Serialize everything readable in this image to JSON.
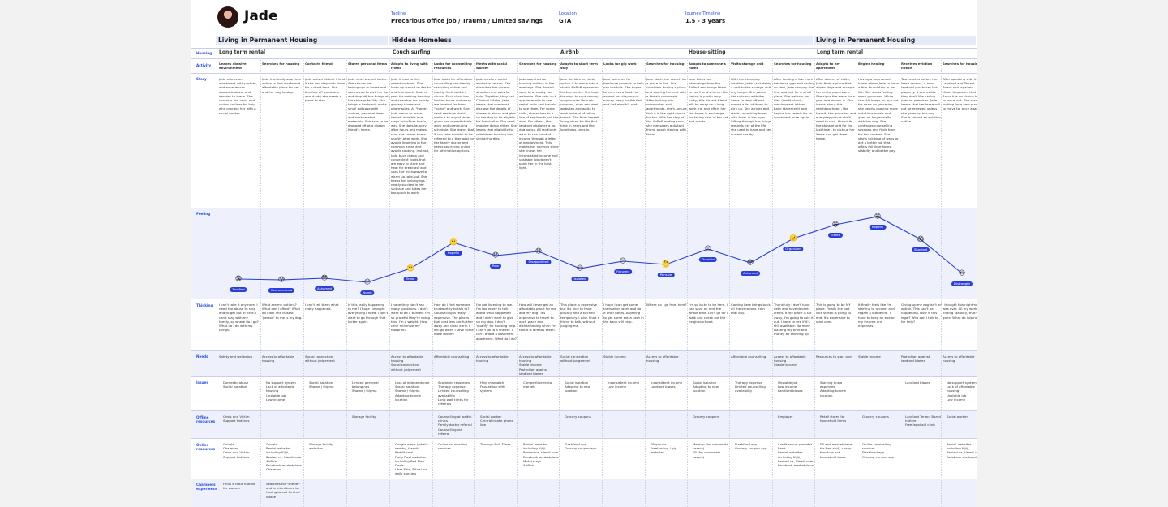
{
  "persona": {
    "name": "Jade",
    "tagline_label": "Tagline",
    "tagline": "Precarious office job / Trauma / Limited savings",
    "location_label": "Location",
    "location": "GTA",
    "timeline_label": "Journey Timeline",
    "timeline": "1.5 - 3 years"
  },
  "phases": [
    "Living in Permanent Housing",
    "Hidden Homeless",
    "Living in Permanent Housing"
  ],
  "row_labels": {
    "housing": "Housing",
    "activity": "Activity",
    "story": "Story",
    "feeling": "Feeling",
    "thinking": "Thinking",
    "needs": "Needs",
    "issues": "Issues",
    "offline": "Offline resources",
    "online": "Online resources",
    "champions": "Chamners experience"
  },
  "housing_stages": [
    "Long term rental",
    "Couch surfing",
    "AirBnb",
    "House-sitting",
    "Long term rental"
  ],
  "activities": [
    "Leaves abusive environment",
    "Searches for housing",
    "Contacts friend",
    "Stores personal items",
    "Adapts to living with friend",
    "Looks for counselling resources",
    "Meets with social worker",
    "Searches for housing",
    "Adapts to short term stay",
    "Looks for gig work",
    "Searches for housing",
    "Adapts to someone's home",
    "Visits storage unit",
    "Searches for housing",
    "Adapts to her apartment",
    "Begins healing",
    "Receives eviction notice",
    "Searches for housing"
  ],
  "stories": [
    "Jade shares an apartment with partner, and experiences domestic abuse and decides to leave. She contacts the crisis and victim hotlines for help who connect her with a social worker.",
    "Jade frantically searches online to find a safe and affordable place for her and her dog to stay.",
    "Jade asks a distant friend if she can stay with them for a short time. She brushes off questions about why she needs a place to stay.",
    "Jade rents a small locker. She shoves her belongings in boxes and uses a cab to pick her up and drop off her things at the storage facility. She brings a backpack and a small suitcase with clothes, personal items and work related materials. She asks to be dropped off at a distant friend's home.",
    "Jade is new to this neighbourhood. She looks up transit routes to and from work, finds a park for walking her dog and searches for nearby grocery stores and pharmacies. At \"home\", Jade wants to make herself invisible and stays out of her host's way. She does laundry after hours and makes sure she comes home shortly after work. She avoids lingering in the common areas and avoids cooking. Instead, Jade buys cheap and convenient foods that are easy to store and heat for breakfast and uses the microwave to warm up take-out. She keeps her belongings neatly stacked in her suitcase and takes her backpack to work.",
    "Jade looks for affordable counselling services by searching online and mostly finds walk-in clinics. Each clinic has limited hours and many are located far from \"home\" and work. She can't see how she'd make it to any of them given her unpredictable work and commuting schedule. She learns that it can take months to be referred to a therapist by her family doctor and keeps searching online for alternative options.",
    "Jade meets a social worker in person. She describes her current situation and asks for help. Together, they call Criminal Intake. Jade learns that she must disclose the details of domestic abuse and give up her dog to be eligible for the shelter. She can't imagine doing either. She learns that eligibility for subsidized housing has similar hurdles.",
    "Jade searches for housing options in the evenings. She doesn't want to overstay her welcome. She sets up 6 appointments to see rental units and travels to see them. For some units, she arrives to a line of applicants out the door. For others, the landlord discloses a no-dog policy. All landlords want to see proof of income through a letter of employment. This makes her nervous since she knows her inconsistent income and unstable job doesn't paint her in the best light.",
    "Jade decides her best option is to move into a studio AirBnB apartment for two weeks. She looks for ways to save money on groceries through coupons, apps and deal websites and walks to work instead of taking transit. She finds herself living alone for the first time in years and the loneliness sinks in.",
    "Jade searches for freelance projects to help pay the bills. She hopes to earn extra funds to extend her stay or put money away for the first and last month's rent.",
    "Jade starts her search for a place to live. She considers finding a place and sharing the rent with a female roommate. After looking into roommates and apartments, she's unsure that it is the right choice for her. With her stay at the AirBnB ending soon, she messages a distant friend about staying with them.",
    "Jade takes her belongings from the AirBnB and brings them to her friend's home. Her timing is particularly lucky; this distant friend will be away on a long work trip and offers her the home in exchange for taking care of her cat and plants.",
    "With the changing weather, Jade can't delay a visit to the storage unit any longer. She packs her suitcase with the items to drop off and makes a list of items to pick up. She arrives and starts unpacking boxes with tears in her eyes. Sifting through her things reminds her of the life she used to have and her current reality.",
    "After landing a few more freelance gigs and saving on rent, Jade can pay the first and last for a small place. She gathers her files (credit check, employment letters, bank statement) and begins her search for an apartment once again.",
    "After dozens of visits, Jade finds a place that allows dogs and accepts her rental paperwork. She signs the lease for a year and moves in. She learns about this neighbourhood - the transit, the groceries and everyday places she'll need to visit. She visits the storage unit for the last time - to pick up her items and get them home.",
    "Having a permanent home allows Jade to have a firm foundation in her life. She starts feeling more grounded. While she still keeps an eye out for deals on groceries, she begins cooking more nutritious meals and goes on longer walks with her dog. She continues counselling sessions and finds time for her hobbies. She starts thinking of ways to get a better job that offers full time hours, stability and better pay.",
    "Two months before the lease renews, a new landlord purchases the property. It seems like they don't like having pets on premises. Jade learns that her lease will not be renewed unless she gives up her dog. She is served an eviction notice.",
    "After speaking with the Landlord and Tenant Board and legal aid clinic, it appears that Anice has no choice but to move out. She starts looking for a new place to move to, once again."
  ],
  "feelings": [
    "Terrified",
    "Overwhelmed",
    "Ashamed",
    "Numb",
    "Tense",
    "Hopeful",
    "Raw",
    "Disappointed",
    "Isolated",
    "Focused",
    "Pensive",
    "Thankful",
    "Ashamed",
    "Organized",
    "Elated",
    "Hopeful",
    "Shocked",
    "Distraught"
  ],
  "thinking": [
    "I can't take it anymore, I need the abuse to stop and to get out of here. I can't stay with my family, so where do I go? What do I do with my things?",
    "What are my options? What can I afford? What do I do? The closest 'person' to me is my dog.",
    "I can't tell them what really happened.",
    "Is this really happening to me? I hope I brought everything I need. I don't want to go through that locker again.",
    "I hope they don't ask many questions. I don't want to be a burden. I'm so grateful they're doing this. I'm a weight. How can I minimize my footprint?",
    "How do I find someone trustworthy to talk to? Counselling is really expensive. The places that cost less are further away and close early. I will go when I save some more money.",
    "I'm not listening to me. I'm too ready to talk about what happened and I don't want to give up my dog. I don't 'qualify' for housing help. I can't go to a shelter. I can't afford a basement apartment. What do I do?",
    "How will I ever get an affordable place for me and my dog? It's expensive to travel to each place and disheartening when I'm told it is already taken.",
    "This place is expensive but it's nice to have privacy and a kitchen temporary. I wish I had a friend to talk, without judging me.",
    "I hope I can get some translation work and do it after hours. Anything to get some extra cash in the bank will help.",
    "Where do I go from here?",
    "I'm so lucky to be here. I can save on rent the whole time. Let's go for a walk and check out the neighbourhood.",
    "Coming here brings back all the emotions from that day.",
    "Thankfully I don't have debt and have decent credit. If the place is far away, I'm going to rule it out. I have to see if it's still available. No more wasting my time and money by showing up.",
    "This is going to be MY place. Finally the bad luck streak is going to end. It's expensive to start over.",
    "It finally feels like I'm starting to recover and regain a stable life. I have to keep an eye on my income and expenses.",
    "Giving up my dog isn't an option. This can't be happening. How is this legal? Who can I talk to for help?",
    "I thought this nightmare was over. All my work in finding stability, that's all gone. What do I do now?"
  ],
  "needs": [
    [
      "Safety and wellbeing"
    ],
    [
      "Access to affordable housing"
    ],
    [
      "Social connection without judgement"
    ],
    [],
    [
      "Access to affordable housing",
      "Social connection without judgement"
    ],
    [
      "Affordable counselling"
    ],
    [
      "Access to affordable housing"
    ],
    [
      "Access to affordable housing",
      "Stable income",
      "Protection against landlord biases"
    ],
    [
      "Social connection without judgement"
    ],
    [
      "Stable income"
    ],
    [
      "Access to affordable housing"
    ],
    [],
    [
      "Affordable counselling"
    ],
    [
      "Access to affordable housing",
      "Stable income"
    ],
    [
      "Resources to start over"
    ],
    [
      "Stable income"
    ],
    [
      "Protection against landlord biases"
    ],
    [
      "Access to affordable housing"
    ]
  ],
  "issues": [
    [
      "Domestic abuse",
      "Social isolation"
    ],
    [
      "No support system",
      "Lack of affordable housing",
      "Unstable job",
      "Low income"
    ],
    [
      "Social isolation",
      "Shame / stigma"
    ],
    [
      "Limited personal belongings",
      "Shame / stigma"
    ],
    [
      "Loss of independence",
      "Social isolation",
      "Shame / stigma",
      "Adapting to new location"
    ],
    [
      "Scattered resources",
      "Therapy expense",
      "Limited counselling availability",
      "Long wait times for referrals"
    ],
    [
      "Help mismatch",
      "Frustration with system"
    ],
    [
      "Competitive rental market"
    ],
    [
      "Social isolation",
      "Adapting to new location"
    ],
    [
      "Inconsistent income",
      "Low income"
    ],
    [
      "Inconsistent income",
      "Landlord biases"
    ],
    [
      "Social isolation",
      "Adapting to new location"
    ],
    [
      "Therapy expense",
      "Limited counselling availability"
    ],
    [
      "Unstable job",
      "Low income",
      "Landlord biases"
    ],
    [
      "Starting anew expenses",
      "Adapting to new location"
    ],
    [],
    [
      "Landlord biases"
    ],
    [
      "No support system",
      "Lack of affordable housing",
      "Unstable job",
      "Low income"
    ]
  ],
  "offline": [
    [
      "Crisis and Victim Support Hotlines"
    ],
    [],
    [],
    [
      "Storage facility"
    ],
    [],
    [
      "Counselling at walkin clinics",
      "Family doctor referral",
      "Counselling via referral"
    ],
    [
      "Social worker",
      "Central intake phone line"
    ],
    [],
    [
      "Grocery coupons"
    ],
    [],
    [],
    [
      "Grocery coupons"
    ],
    [],
    [
      "Employer"
    ],
    [
      "Retail stores for household items"
    ],
    [
      "Grocery coupons"
    ],
    [
      "Landlord Tenant Board hotline",
      "Free legal aid clinic"
    ],
    [
      "Social worker"
    ]
  ],
  "online": [
    [
      "Google",
      "Chalmers",
      "Crisis and Victim Support Hotlines"
    ],
    [
      "Google",
      "Rental websites including Kijiji, Rented.ca, Viewit.com",
      "AirBnb",
      "Facebook marketplace",
      "Chalmers"
    ],
    [
      "Storage facility websites"
    ],
    [],
    [
      "Google maps (what's nearby, transit)",
      "Reddit.com",
      "Daily Deal websites including Red Flag Deals",
      "Uber Eats, Ritual for daily specials"
    ],
    [
      "Online counselling services"
    ],
    [
      "Through Ruff Times"
    ],
    [
      "Rental websites including Kijiji, Rented.ca, Viewit.com",
      "Facebook marketplace",
      "Motel stays",
      "AirBnb"
    ],
    [
      "Flashfood app",
      "Grocery coupon app"
    ],
    [],
    [
      "FB groups",
      "Freelancing / gig websites"
    ],
    [
      "Meetup (for roommate search)",
      "FB (for roommate search)"
    ],
    [
      "Flashfood app",
      "Grocery coupon app"
    ],
    [
      "Credit report provider",
      "Bank",
      "Rental websites including Kijiji, Rented.ca, Viewit.com",
      "Facebook marketplace"
    ],
    [
      "FB and marketplaces for free stuff, cheap furniture and household items"
    ],
    [
      "Online counselling services",
      "Flashfood app",
      "Grocery coupon app"
    ],
    [],
    [
      "Rental websites including Kijiji, Rented.ca, Viewit.com",
      "Facebook marketplace"
    ]
  ],
  "champions": [
    [
      "Finds a crisis hotline for women"
    ],
    [
      "Searches for \"shelter\" and is intimidated by having to call Central Intake"
    ]
  ]
}
